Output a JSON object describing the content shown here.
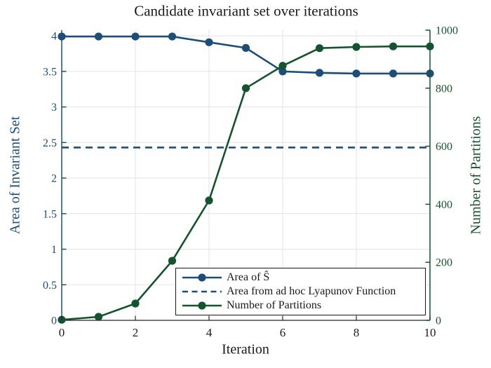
{
  "title": "Candidate invariant set over iterations",
  "axes": {
    "x_label": "Iteration",
    "left_label": "Area of Invariant Set",
    "right_label": "Number of Partitions"
  },
  "colors": {
    "blue": "#1d4e79",
    "green": "#14532d",
    "grid": "#e3e3e7",
    "axis_black": "#262626",
    "text_black": "#1a1a1a"
  },
  "chart_data": {
    "type": "line",
    "title": "Candidate invariant set over iterations",
    "xlabel": "Iteration",
    "ylabel_left": "Area of Invariant Set",
    "ylabel_right": "Number of Partitions",
    "xlim": [
      0,
      10
    ],
    "x_ticks": [
      0,
      2,
      4,
      6,
      8,
      10
    ],
    "ylim_left": [
      0,
      4.08
    ],
    "left_ticks": [
      0,
      0.5,
      1,
      1.5,
      2,
      2.5,
      3,
      3.5,
      4
    ],
    "ylim_right": [
      0,
      1000
    ],
    "right_ticks": [
      0,
      200,
      400,
      600,
      800,
      1000
    ],
    "grid": true,
    "legend_position": "inside lower right",
    "x": [
      0,
      1,
      2,
      3,
      4,
      5,
      6,
      7,
      8,
      9,
      10
    ],
    "series": [
      {
        "name": "Area of Ŝ",
        "axis": "left",
        "line": "solid",
        "marker": "circle",
        "color": "#1d4e79",
        "values": [
          3.99,
          3.99,
          3.99,
          3.99,
          3.91,
          3.83,
          3.5,
          3.48,
          3.47,
          3.47,
          3.47
        ]
      },
      {
        "name": "Area from ad hoc Lyapunov Function",
        "axis": "left",
        "line": "dashed",
        "marker": "none",
        "color": "#1d4e79",
        "constant": 2.43
      },
      {
        "name": "Number of Partitions",
        "axis": "right",
        "line": "solid",
        "marker": "circle",
        "color": "#14532d",
        "values": [
          2,
          12,
          58,
          205,
          413,
          800,
          877,
          938,
          942,
          944,
          944
        ]
      }
    ]
  }
}
